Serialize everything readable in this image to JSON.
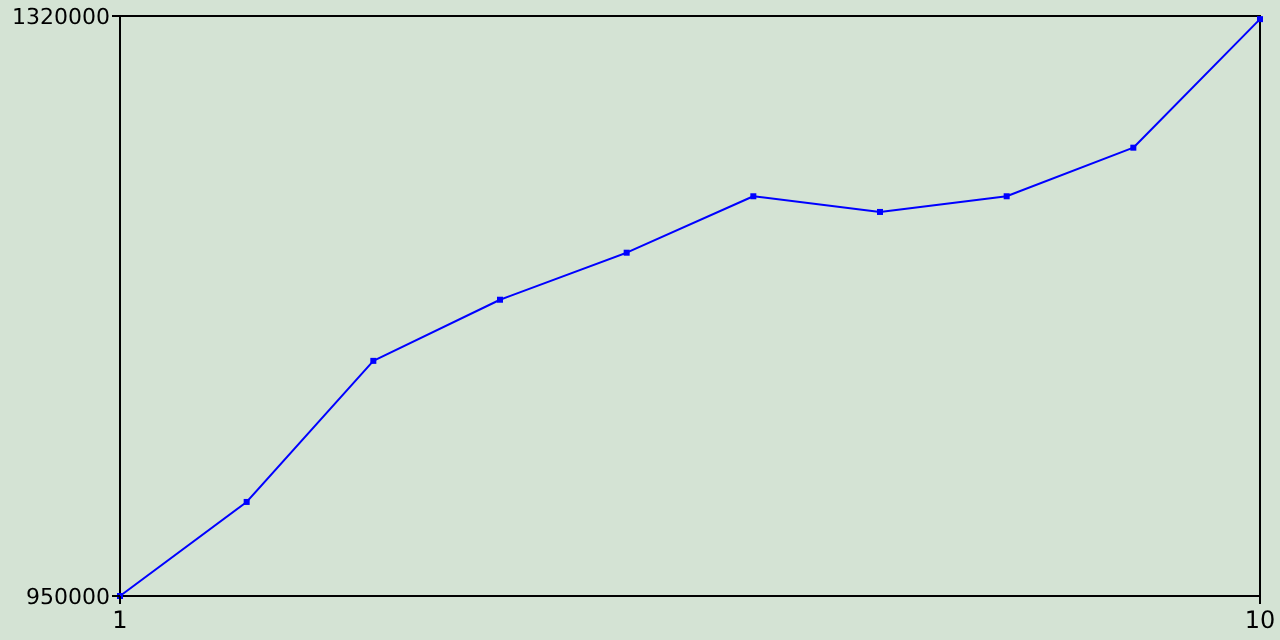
{
  "chart_data": {
    "type": "line",
    "x": [
      1,
      2,
      3,
      4,
      5,
      6,
      7,
      8,
      9,
      10
    ],
    "series": [
      {
        "color": "#0000ff",
        "values": [
          950000,
          1010000,
          1100000,
          1139000,
          1169000,
          1205000,
          1195000,
          1205000,
          1236000,
          1318000
        ]
      }
    ],
    "xlim": [
      1,
      10
    ],
    "xticks": [
      1,
      10
    ],
    "ylim": [
      950000,
      1320000
    ],
    "yticks": [
      950000,
      1320000
    ],
    "grid": false,
    "marker": "square",
    "line_style": "solid"
  }
}
